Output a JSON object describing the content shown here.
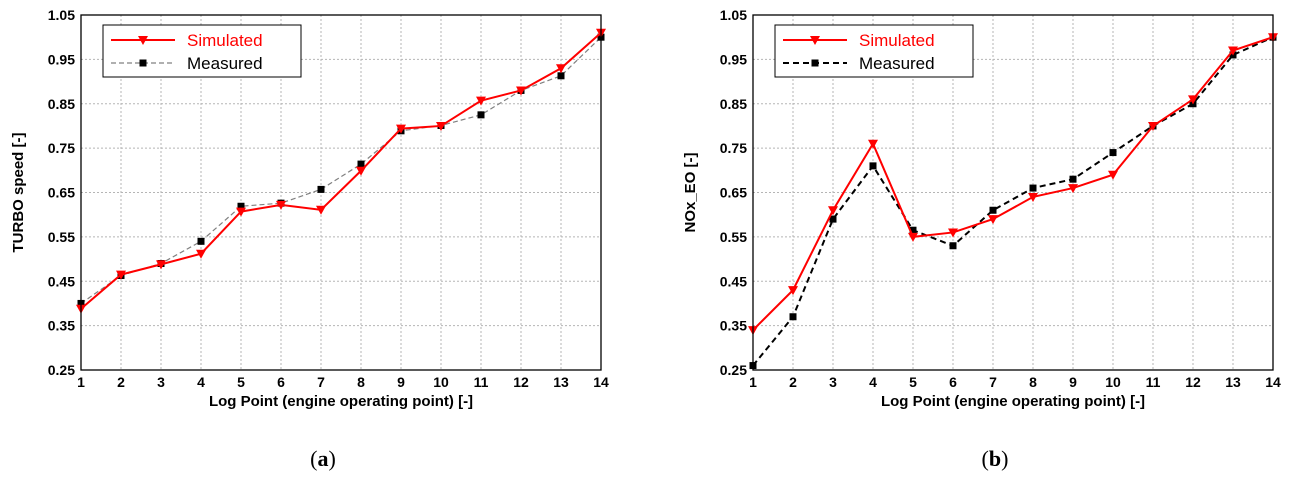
{
  "chart_data": [
    {
      "type": "line",
      "panel_label": "a",
      "title": "",
      "xlabel": "Log Point (engine operating point) [-]",
      "ylabel": "TURBO speed [-]",
      "x": [
        1,
        2,
        3,
        4,
        5,
        6,
        7,
        8,
        9,
        10,
        11,
        12,
        13,
        14
      ],
      "xlim": [
        1,
        14
      ],
      "ylim": [
        0.25,
        1.05
      ],
      "yticks": [
        "0.25",
        "0.35",
        "0.45",
        "0.55",
        "0.65",
        "0.75",
        "0.85",
        "0.95",
        "1.05"
      ],
      "xticks": [
        "1",
        "2",
        "3",
        "4",
        "5",
        "6",
        "7",
        "8",
        "9",
        "10",
        "11",
        "12",
        "13",
        "14"
      ],
      "grid": true,
      "legend": "top-left",
      "series": [
        {
          "name": "Simulated",
          "color": "#ff0000",
          "marker": "triangle-down",
          "dash": "solid",
          "values": [
            0.388,
            0.465,
            0.488,
            0.512,
            0.607,
            0.622,
            0.611,
            0.699,
            0.794,
            0.8,
            0.857,
            0.88,
            0.93,
            1.01
          ]
        },
        {
          "name": "Measured",
          "color": "#808080",
          "marker": "square",
          "dash": "dashed",
          "values": [
            0.4,
            0.463,
            0.49,
            0.54,
            0.619,
            0.626,
            0.657,
            0.714,
            0.789,
            0.801,
            0.825,
            0.88,
            0.913,
            1.0
          ]
        }
      ]
    },
    {
      "type": "line",
      "panel_label": "b",
      "title": "",
      "xlabel": "Log Point (engine operating point) [-]",
      "ylabel": "NOx_EO [-]",
      "x": [
        1,
        2,
        3,
        4,
        5,
        6,
        7,
        8,
        9,
        10,
        11,
        12,
        13,
        14
      ],
      "xlim": [
        1,
        14
      ],
      "ylim": [
        0.25,
        1.05
      ],
      "yticks": [
        "0.25",
        "0.35",
        "0.45",
        "0.55",
        "0.65",
        "0.75",
        "0.85",
        "0.95",
        "1.05"
      ],
      "xticks": [
        "1",
        "2",
        "3",
        "4",
        "5",
        "6",
        "7",
        "8",
        "9",
        "10",
        "11",
        "12",
        "13",
        "14"
      ],
      "grid": true,
      "legend": "top-left",
      "series": [
        {
          "name": "Simulated",
          "color": "#ff0000",
          "marker": "triangle-down",
          "dash": "solid",
          "values": [
            0.34,
            0.43,
            0.61,
            0.76,
            0.55,
            0.56,
            0.59,
            0.64,
            0.66,
            0.69,
            0.8,
            0.86,
            0.97,
            1.0
          ]
        },
        {
          "name": "Measured",
          "color": "#000000",
          "marker": "square",
          "dash": "dashed",
          "values": [
            0.26,
            0.37,
            0.59,
            0.71,
            0.565,
            0.53,
            0.61,
            0.66,
            0.68,
            0.74,
            0.8,
            0.85,
            0.96,
            1.0
          ]
        }
      ]
    }
  ]
}
